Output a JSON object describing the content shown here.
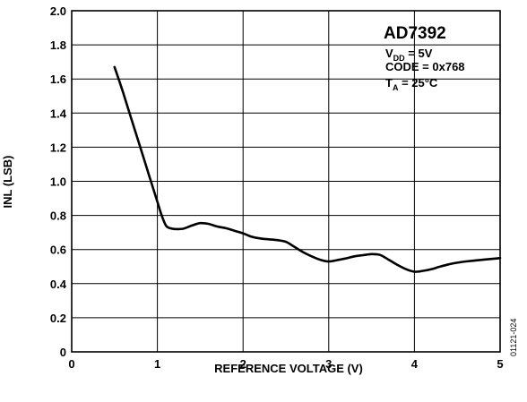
{
  "chart_data": {
    "type": "line",
    "xlabel": "REFERENCE VOLTAGE (V)",
    "ylabel": "INL (LSB)",
    "xlim": [
      0,
      5
    ],
    "ylim": [
      0,
      2.0
    ],
    "x_ticks": [
      "0",
      "1",
      "2",
      "3",
      "4",
      "5"
    ],
    "y_ticks": [
      "0",
      "0.2",
      "0.4",
      "0.6",
      "0.8",
      "1.0",
      "1.2",
      "1.4",
      "1.6",
      "1.8",
      "2.0"
    ],
    "grid": true,
    "legend": {
      "position": "top-right",
      "title": "AD7392",
      "lines": [
        {
          "main": "V",
          "sub": "DD",
          "rest": " = 5V"
        },
        {
          "main": "CODE = 0x768",
          "sub": "",
          "rest": ""
        },
        {
          "main": "T",
          "sub": "A",
          "rest": " = 25°C"
        }
      ]
    },
    "figure_id": "01121-024",
    "series": [
      {
        "x": [
          0.5,
          0.6,
          0.7,
          0.8,
          0.9,
          1.0,
          1.05,
          1.1,
          1.15,
          1.2,
          1.3,
          1.4,
          1.5,
          1.6,
          1.7,
          1.8,
          1.9,
          2.0,
          2.1,
          2.2,
          2.3,
          2.4,
          2.5,
          2.6,
          2.7,
          2.8,
          2.9,
          3.0,
          3.1,
          3.2,
          3.3,
          3.4,
          3.5,
          3.6,
          3.7,
          3.8,
          3.9,
          4.0,
          4.1,
          4.2,
          4.3,
          4.4,
          4.5,
          4.6,
          4.7,
          4.8,
          4.9,
          5.0
        ],
        "y": [
          1.67,
          1.52,
          1.36,
          1.2,
          1.04,
          0.88,
          0.8,
          0.74,
          0.725,
          0.72,
          0.722,
          0.74,
          0.755,
          0.75,
          0.735,
          0.725,
          0.71,
          0.695,
          0.675,
          0.665,
          0.66,
          0.655,
          0.645,
          0.615,
          0.585,
          0.56,
          0.54,
          0.53,
          0.538,
          0.548,
          0.56,
          0.567,
          0.573,
          0.568,
          0.54,
          0.51,
          0.485,
          0.47,
          0.475,
          0.485,
          0.5,
          0.513,
          0.523,
          0.53,
          0.535,
          0.54,
          0.545,
          0.55
        ]
      }
    ]
  }
}
